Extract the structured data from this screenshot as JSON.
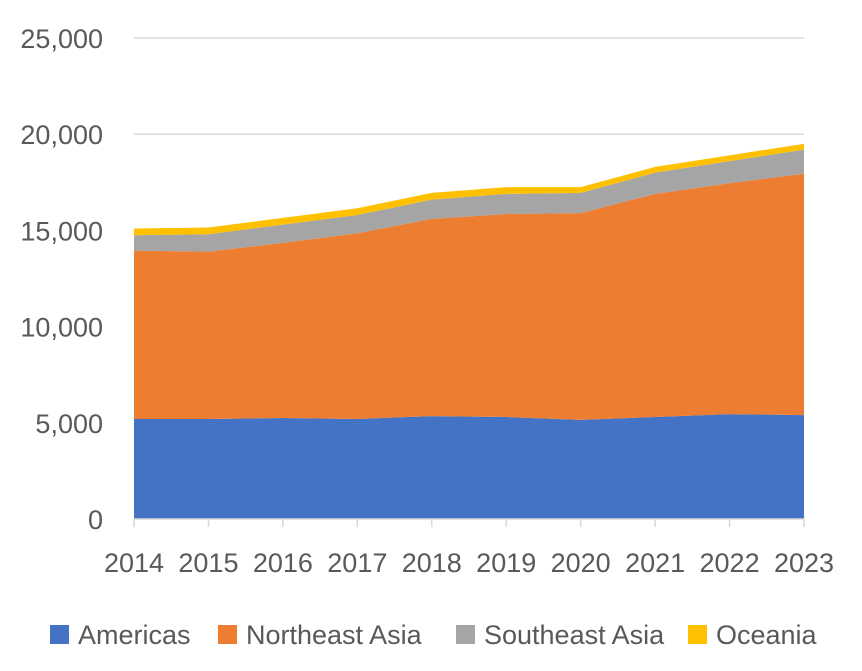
{
  "chart_data": {
    "type": "area",
    "stacked": true,
    "categories": [
      "2014",
      "2015",
      "2016",
      "2017",
      "2018",
      "2019",
      "2020",
      "2021",
      "2022",
      "2023"
    ],
    "series": [
      {
        "name": "Americas",
        "color": "#4472C4",
        "values": [
          5200,
          5200,
          5250,
          5200,
          5350,
          5300,
          5150,
          5300,
          5450,
          5400
        ]
      },
      {
        "name": "Northeast Asia",
        "color": "#ED7D31",
        "values": [
          8750,
          8700,
          9100,
          9650,
          10250,
          10550,
          10750,
          11600,
          12000,
          12550
        ]
      },
      {
        "name": "Southeast Asia",
        "color": "#A5A5A5",
        "values": [
          800,
          900,
          950,
          950,
          1000,
          1050,
          1050,
          1100,
          1150,
          1250
        ]
      },
      {
        "name": "Oceania",
        "color": "#FFC000",
        "values": [
          350,
          350,
          350,
          350,
          350,
          350,
          300,
          300,
          300,
          300
        ]
      }
    ],
    "ylim": [
      0,
      25000
    ],
    "yticks": [
      "0",
      "5,000",
      "10,000",
      "15,000",
      "20,000",
      "25,000"
    ],
    "grid": true,
    "legend": "bottom"
  }
}
